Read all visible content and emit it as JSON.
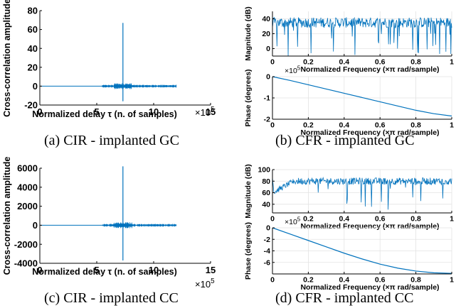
{
  "captions": {
    "a": "(a) CIR - implanted GC",
    "b": "(b) CFR - implanted GC",
    "c": "(c) CIR - implanted CC",
    "d": "(d) CFR - implanted CC"
  },
  "colors": {
    "series": "#0072BD",
    "axis": "#000000",
    "grid": "#e3e3e3"
  },
  "chart_data": [
    {
      "id": "cir_gc",
      "type": "line",
      "xlabel": "Normalized delay τ (n. of samples)",
      "ylabel": "Cross-correlation amplitude",
      "exponent": "×10^5",
      "xlim": [
        0,
        15
      ],
      "ylim": [
        -20,
        80
      ],
      "xticks": [
        0,
        5,
        10,
        15
      ],
      "yticks": [
        -20,
        0,
        20,
        40,
        60,
        80
      ],
      "grid": false,
      "series": [
        {
          "x_range": [
            0,
            12
          ],
          "baseline": 0,
          "peak_x": 7.3,
          "peak_max": 67,
          "peak_min": -16,
          "noise_band": [
            5.5,
            12
          ]
        }
      ]
    },
    {
      "id": "cfr_gc_mag",
      "type": "line",
      "xlabel": "Normalized Frequency  (×π rad/sample)",
      "ylabel": "Magnitude (dB)",
      "xlim": [
        0,
        1
      ],
      "ylim": [
        -10,
        50
      ],
      "xticks": [
        0,
        0.2,
        0.4,
        0.6,
        0.8,
        1
      ],
      "yticks": [
        0,
        20,
        40
      ],
      "grid": true,
      "series": [
        {
          "mean": 35,
          "spread": 7,
          "dips_to": -10
        }
      ]
    },
    {
      "id": "cfr_gc_phase",
      "type": "line",
      "xlabel": "Normalized Frequency  (×π rad/sample)",
      "ylabel": "Phase (degrees)",
      "exponent": "×10^5",
      "xlim": [
        0,
        1
      ],
      "ylim": [
        -2,
        0
      ],
      "xticks": [
        0,
        0.2,
        0.4,
        0.6,
        0.8,
        1
      ],
      "yticks": [
        -2,
        -1,
        0
      ],
      "grid": true,
      "series": [
        {
          "x": [
            0,
            0.1,
            0.2,
            0.3,
            0.4,
            0.5,
            0.6,
            0.7,
            0.8,
            0.9,
            1.0
          ],
          "y": [
            0,
            -0.18,
            -0.38,
            -0.58,
            -0.78,
            -0.98,
            -1.18,
            -1.38,
            -1.58,
            -1.74,
            -1.85
          ]
        }
      ]
    },
    {
      "id": "cir_cc",
      "type": "line",
      "xlabel": "Normalized delay τ (n. of samples)",
      "ylabel": "Cross-correlation amplitude",
      "exponent": "×10^5",
      "xlim": [
        0,
        15
      ],
      "ylim": [
        -4000,
        6000
      ],
      "xticks": [
        0,
        5,
        10,
        15
      ],
      "yticks": [
        -4000,
        -2000,
        0,
        2000,
        4000,
        6000
      ],
      "grid": false,
      "series": [
        {
          "x_range": [
            0,
            12
          ],
          "baseline": 0,
          "peak_x": 7.3,
          "peak_max": 6200,
          "peak_min": -3700,
          "noise_band": [
            5.5,
            12
          ]
        }
      ]
    },
    {
      "id": "cfr_cc_mag",
      "type": "line",
      "xlabel": "Normalized Frequency  (×π rad/sample)",
      "ylabel": "Magnitude (dB)",
      "xlim": [
        0,
        1
      ],
      "ylim": [
        25,
        100
      ],
      "xticks": [
        0,
        0.2,
        0.4,
        0.6,
        0.8,
        1
      ],
      "yticks": [
        40,
        60,
        80,
        100
      ],
      "grid": true,
      "series": [
        {
          "mean": 80,
          "spread": 6,
          "dips_to": 30
        }
      ]
    },
    {
      "id": "cfr_cc_phase",
      "type": "line",
      "xlabel": "Normalized Frequency  (×π rad/sample)",
      "ylabel": "Phase (degrees)",
      "exponent": "×10^5",
      "xlim": [
        0,
        1
      ],
      "ylim": [
        -8,
        0
      ],
      "xticks": [
        0,
        0.2,
        0.4,
        0.6,
        0.8,
        1
      ],
      "yticks": [
        -6,
        -4,
        -2,
        0
      ],
      "grid": true,
      "series": [
        {
          "x": [
            0,
            0.1,
            0.2,
            0.3,
            0.4,
            0.5,
            0.6,
            0.7,
            0.8,
            0.9,
            1.0
          ],
          "y": [
            0,
            -1.1,
            -2.2,
            -3.3,
            -4.4,
            -5.4,
            -6.3,
            -7.0,
            -7.5,
            -7.8,
            -7.9
          ]
        }
      ]
    }
  ]
}
